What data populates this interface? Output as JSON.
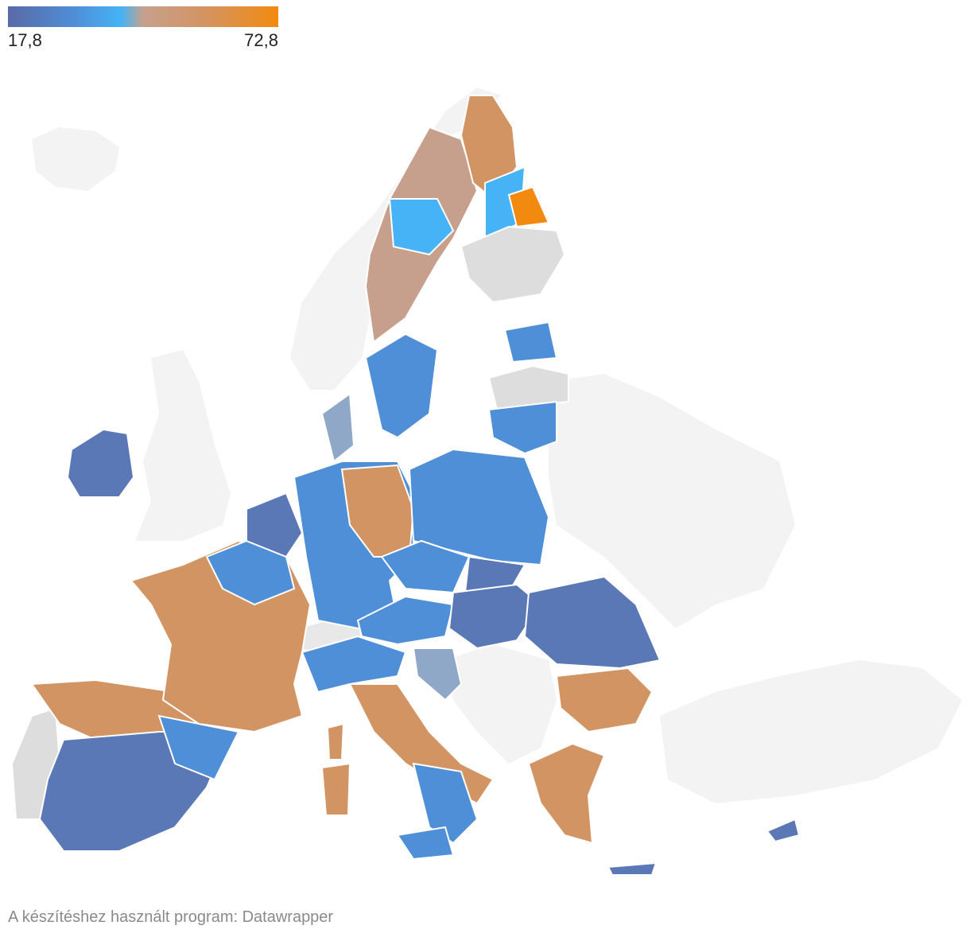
{
  "legend": {
    "min_label": "17,8",
    "max_label": "72,8",
    "min_color": "#5a6aa6",
    "mid_color": "#45b3f5",
    "max_color": "#f28a10"
  },
  "colors": {
    "no_data": "#dddddd",
    "background_land": "#f3f3f3",
    "border": "#ffffff"
  },
  "footer": {
    "credit": "A készítéshez használt program: Datawrapper"
  }
}
